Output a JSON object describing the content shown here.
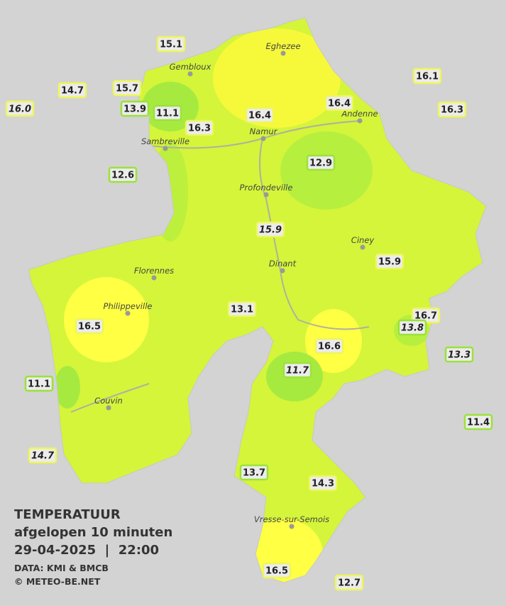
{
  "title": "TEMPERATUUR",
  "subtitle": "afgelopen 10 minuten",
  "datetime": "29-04-2025  |  22:00",
  "source": "DATA: KMI & BMCB",
  "copyright": "© METEO-BE.NET",
  "cities": [
    "Gembloux",
    "Eghezee",
    "Andenne",
    "Namur",
    "Sambreville",
    "Profondeville",
    "Ciney",
    "Dinant",
    "Florennes",
    "Philippeville",
    "Couvin",
    "Vresse-sur-Semois"
  ],
  "stations": [
    "15.1",
    "14.7",
    "15.7",
    "16.0",
    "13.9",
    "11.1",
    "16.3",
    "16.4",
    "16.4",
    "16.1",
    "16.3",
    "12.6",
    "12.9",
    "15.9",
    "15.9",
    "13.1",
    "16.5",
    "16.7",
    "13.8",
    "16.6",
    "13.3",
    "11.7",
    "11.1",
    "11.4",
    "14.7",
    "13.7",
    "14.3",
    "16.5",
    "12.7"
  ]
}
